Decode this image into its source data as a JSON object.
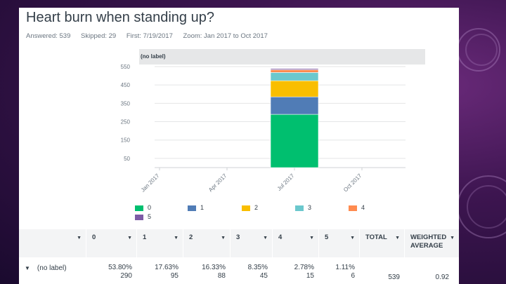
{
  "page": {
    "title": "Heart burn when standing up?",
    "answered": "Answered: 539",
    "skipped": "Skipped: 29",
    "first": "First: 7/19/2017",
    "zoom": "Zoom: Jan 2017 to Oct 2017"
  },
  "chart_data": {
    "type": "bar",
    "stacked": true,
    "panel_label": "(no label)",
    "categories": [
      "Jan 2017",
      "Apr 2017",
      "Jul 2017",
      "Oct 2017"
    ],
    "series": [
      {
        "name": "0",
        "color": "#00bf6f",
        "values": [
          0,
          0,
          290,
          0
        ]
      },
      {
        "name": "1",
        "color": "#507cb6",
        "values": [
          0,
          0,
          95,
          0
        ]
      },
      {
        "name": "2",
        "color": "#f9be00",
        "values": [
          0,
          0,
          88,
          0
        ]
      },
      {
        "name": "3",
        "color": "#6bc8cd",
        "values": [
          0,
          0,
          45,
          0
        ]
      },
      {
        "name": "4",
        "color": "#ff8b4f",
        "values": [
          0,
          0,
          15,
          0
        ]
      },
      {
        "name": "5",
        "color": "#7d5ba6",
        "values": [
          0,
          0,
          6,
          0
        ]
      }
    ],
    "yticks": [
      "550",
      "450",
      "350",
      "250",
      "150",
      "50"
    ],
    "ylim": [
      0,
      550
    ],
    "xlabel": "",
    "ylabel": ""
  },
  "table": {
    "headers": [
      "0",
      "1",
      "2",
      "3",
      "4",
      "5",
      "TOTAL",
      "WEIGHTED AVERAGE"
    ],
    "row_label": "(no label)",
    "percents": [
      "53.80%",
      "17.63%",
      "16.33%",
      "8.35%",
      "2.78%",
      "1.11%"
    ],
    "counts": [
      "290",
      "95",
      "88",
      "45",
      "15",
      "6"
    ],
    "total": "539",
    "weighted_average": "0.92"
  }
}
